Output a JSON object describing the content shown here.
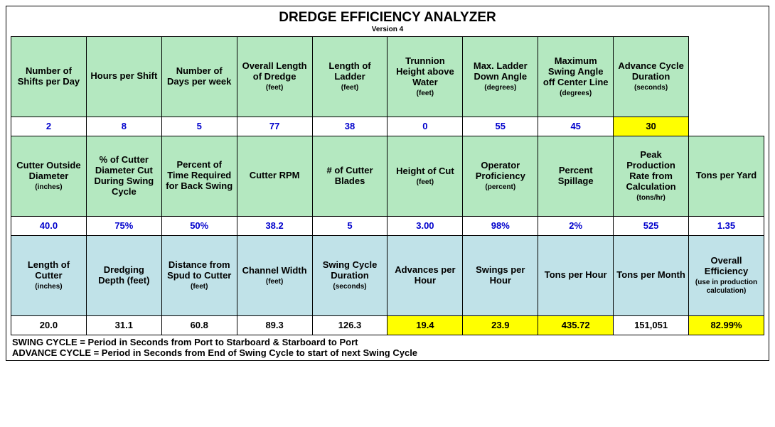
{
  "title": "DREDGE EFFICIENCY ANALYZER",
  "version": "Version 4",
  "colors": {
    "green_header": "#b4e8c0",
    "blue_header": "#c0e2e8",
    "yellow_highlight": "#ffff00",
    "value_text": "#0000cc",
    "border": "#000000",
    "background": "#ffffff"
  },
  "row1_headers": [
    {
      "text": "Number of Shifts per Day"
    },
    {
      "text": "Hours per Shift"
    },
    {
      "text": "Number of Days per week"
    },
    {
      "text": "Overall Length of Dredge",
      "sub": "(feet)"
    },
    {
      "text": "Length of Ladder",
      "sub": "(feet)"
    },
    {
      "text": "Trunnion Height above Water",
      "sub": "(feet)"
    },
    {
      "text": "Max. Ladder Down Angle",
      "sub": "(degrees)"
    },
    {
      "text": "Maximum Swing Angle off Center Line",
      "sub": "(degrees)"
    },
    {
      "text": "Advance Cycle Duration",
      "sub": "(seconds)"
    }
  ],
  "row1_values": [
    "2",
    "8",
    "5",
    "77",
    "38",
    "0",
    "55",
    "45",
    "30"
  ],
  "row1_last_yellow": true,
  "row2_headers": [
    {
      "text": "Cutter Outside Diameter",
      "sub": "(inches)"
    },
    {
      "text": "% of Cutter Diameter Cut During Swing Cycle"
    },
    {
      "text": "Percent of Time Required for Back Swing"
    },
    {
      "text": "Cutter RPM"
    },
    {
      "text": "# of Cutter Blades"
    },
    {
      "text": "Height of Cut",
      "sub": "(feet)"
    },
    {
      "text": "Operator Proficiency",
      "sub": "(percent)"
    },
    {
      "text": "Percent Spillage"
    },
    {
      "text": "Peak Production Rate from Calculation",
      "sub": "(tons/hr)"
    },
    {
      "text": "Tons per Yard"
    }
  ],
  "row2_values": [
    "40.0",
    "75%",
    "50%",
    "38.2",
    "5",
    "3.00",
    "98%",
    "2%",
    "525",
    "1.35"
  ],
  "row3_headers": [
    {
      "text": "Length of Cutter",
      "sub": "(inches)"
    },
    {
      "text": "Dredging Depth (feet)"
    },
    {
      "text": "Distance from Spud to Cutter",
      "sub": "(feet)"
    },
    {
      "text": "Channel Width",
      "sub": "(feet)"
    },
    {
      "text": "Swing Cycle Duration",
      "sub": "(seconds)"
    },
    {
      "text": "Advances per Hour"
    },
    {
      "text": "Swings per Hour"
    },
    {
      "text": "Tons per Hour"
    },
    {
      "text": "Tons per Month"
    },
    {
      "text": "Overall Efficiency",
      "sub": "(use in production calculation)"
    }
  ],
  "row3_values": [
    "20.0",
    "31.1",
    "60.8",
    "89.3",
    "126.3",
    "19.4",
    "23.9",
    "435.72",
    "151,051",
    "82.99%"
  ],
  "row3_yellow_cols": [
    5,
    6,
    7,
    9
  ],
  "footer": {
    "line1": "SWING CYCLE = Period in Seconds from Port to Starboard & Starboard to Port",
    "line2": "ADVANCE CYCLE = Period in Seconds from End of Swing Cycle to start of next Swing Cycle"
  }
}
